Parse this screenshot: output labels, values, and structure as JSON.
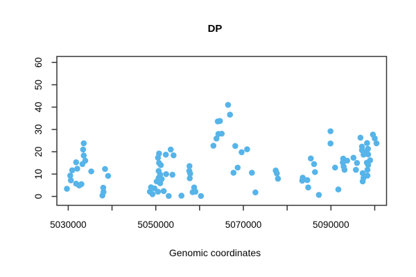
{
  "chart_data": {
    "type": "scatter",
    "title": "DP",
    "xlabel": "Genomic coordinates",
    "ylabel": "",
    "marker": "filled-circle",
    "point_color": "#56B4E9",
    "axis_color": "#333333",
    "text_color": "#000000",
    "grid": false,
    "legend": null,
    "xlim": [
      5027400,
      5102700
    ],
    "ylim": [
      -4,
      62.7
    ],
    "x_ticks": [
      5030000,
      5040000,
      5050000,
      5060000,
      5070000,
      5080000,
      5090000,
      5100000
    ],
    "x_tick_labels": [
      "5030000",
      "",
      "5050000",
      "",
      "5070000",
      "",
      "5090000",
      ""
    ],
    "y_ticks": [
      0,
      10,
      20,
      30,
      40,
      50,
      60
    ],
    "points": [
      [
        5029700,
        3.4
      ],
      [
        5030450,
        9.3
      ],
      [
        5030600,
        7.2
      ],
      [
        5030900,
        11.7
      ],
      [
        5031800,
        15.3
      ],
      [
        5032050,
        12.4
      ],
      [
        5031800,
        5.7
      ],
      [
        5032500,
        4.9
      ],
      [
        5033000,
        5.5
      ],
      [
        5033550,
        23.8
      ],
      [
        5033400,
        21.0
      ],
      [
        5033550,
        18.3
      ],
      [
        5033900,
        16.0
      ],
      [
        5033250,
        14.5
      ],
      [
        5035250,
        11.2
      ],
      [
        5038400,
        12.3
      ],
      [
        5039100,
        9.2
      ],
      [
        5038000,
        3.9
      ],
      [
        5038050,
        2.0
      ],
      [
        5037800,
        0.4
      ],
      [
        5050750,
        19.2
      ],
      [
        5050500,
        17.3
      ],
      [
        5050750,
        15.0
      ],
      [
        5051150,
        14.0
      ],
      [
        5050650,
        11.4
      ],
      [
        5051000,
        9.8
      ],
      [
        5050650,
        8.3
      ],
      [
        5051350,
        7.8
      ],
      [
        5050200,
        6.7
      ],
      [
        5051000,
        5.9
      ],
      [
        5052300,
        18.7
      ],
      [
        5053400,
        21.0
      ],
      [
        5054050,
        18.4
      ],
      [
        5052350,
        10.0
      ],
      [
        5053800,
        9.7
      ],
      [
        5048900,
        4.1
      ],
      [
        5049700,
        3.6
      ],
      [
        5048650,
        2.1
      ],
      [
        5050500,
        2.1
      ],
      [
        5051800,
        2.4
      ],
      [
        5049250,
        1.0
      ],
      [
        5052950,
        0.2
      ],
      [
        5055850,
        0.3
      ],
      [
        5057700,
        13.6
      ],
      [
        5057650,
        11.4
      ],
      [
        5057850,
        10.2
      ],
      [
        5057750,
        8.1
      ],
      [
        5058750,
        4.0
      ],
      [
        5058400,
        1.9
      ],
      [
        5059050,
        2.1
      ],
      [
        5060300,
        0.2
      ],
      [
        5063150,
        22.7
      ],
      [
        5063850,
        25.9
      ],
      [
        5064150,
        33.6
      ],
      [
        5064650,
        33.8
      ],
      [
        5064300,
        28.0
      ],
      [
        5065050,
        28.1
      ],
      [
        5066500,
        41.0
      ],
      [
        5066950,
        36.6
      ],
      [
        5068150,
        22.6
      ],
      [
        5069600,
        19.8
      ],
      [
        5070850,
        21.1
      ],
      [
        5068700,
        12.9
      ],
      [
        5067750,
        10.6
      ],
      [
        5071950,
        10.6
      ],
      [
        5072750,
        1.8
      ],
      [
        5077400,
        11.6
      ],
      [
        5077650,
        10.3
      ],
      [
        5077900,
        7.9
      ],
      [
        5083550,
        8.4
      ],
      [
        5083450,
        7.0
      ],
      [
        5084600,
        7.3
      ],
      [
        5084800,
        4.0
      ],
      [
        5085400,
        17.0
      ],
      [
        5086150,
        14.5
      ],
      [
        5086350,
        10.9
      ],
      [
        5087250,
        0.7
      ],
      [
        5089900,
        29.2
      ],
      [
        5089900,
        23.7
      ],
      [
        5090950,
        12.9
      ],
      [
        5091700,
        3.1
      ],
      [
        5092800,
        16.9
      ],
      [
        5093700,
        16.0
      ],
      [
        5092700,
        15.2
      ],
      [
        5092900,
        13.4
      ],
      [
        5093100,
        11.9
      ],
      [
        5095150,
        17.3
      ],
      [
        5095950,
        15.0
      ],
      [
        5095700,
        11.9
      ],
      [
        5096750,
        26.3
      ],
      [
        5097100,
        22.3
      ],
      [
        5097100,
        20.7
      ],
      [
        5097900,
        19.9
      ],
      [
        5097450,
        18.7
      ],
      [
        5098200,
        15.1
      ],
      [
        5097250,
        10.4
      ],
      [
        5097450,
        8.3
      ],
      [
        5097250,
        6.7
      ],
      [
        5099600,
        27.7
      ],
      [
        5100000,
        26.0
      ],
      [
        5098250,
        23.9
      ],
      [
        5098450,
        21.3
      ],
      [
        5098500,
        18.8
      ],
      [
        5098950,
        16.2
      ],
      [
        5098500,
        14.1
      ],
      [
        5098350,
        11.9
      ],
      [
        5098350,
        9.3
      ],
      [
        5100400,
        23.8
      ]
    ]
  }
}
